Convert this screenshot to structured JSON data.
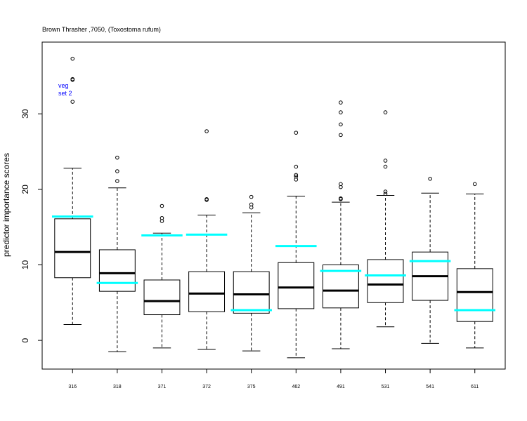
{
  "chart_data": {
    "type": "boxplot",
    "title": "Brown Thrasher ,7050, (Toxostoma rufum)",
    "ylabel": "predictor importance scores",
    "xlabel": "",
    "ylim": [
      -3.8,
      39.5
    ],
    "yticks": [
      0,
      10,
      20,
      30
    ],
    "annotation": [
      "veg",
      "set 2"
    ],
    "colors": {
      "box": "#000000",
      "median": "#000000",
      "reference": "#00ffff",
      "annotation": "#0000ff"
    },
    "categories": [
      "316",
      "318",
      "371",
      "372",
      "375",
      "462",
      "491",
      "531",
      "541",
      "611"
    ],
    "boxes": [
      {
        "category": "316",
        "whisker_low": 2.1,
        "q1": 8.3,
        "median": 11.7,
        "q3": 16.1,
        "whisker_high": 22.8,
        "outliers": [
          31.6,
          34.5,
          34.6,
          37.3
        ],
        "reference": 16.4
      },
      {
        "category": "318",
        "whisker_low": -1.5,
        "q1": 6.5,
        "median": 8.9,
        "q3": 12.0,
        "whisker_high": 20.2,
        "outliers": [
          21.1,
          22.4,
          24.2
        ],
        "reference": 7.6
      },
      {
        "category": "371",
        "whisker_low": -1.0,
        "q1": 3.4,
        "median": 5.2,
        "q3": 8.0,
        "whisker_high": 14.2,
        "outliers": [
          15.8,
          16.2,
          17.8
        ],
        "reference": 13.9
      },
      {
        "category": "372",
        "whisker_low": -1.2,
        "q1": 3.8,
        "median": 6.2,
        "q3": 9.1,
        "whisker_high": 16.6,
        "outliers": [
          18.6,
          18.7,
          27.7
        ],
        "reference": 14.0
      },
      {
        "category": "375",
        "whisker_low": -1.4,
        "q1": 3.6,
        "median": 6.1,
        "q3": 9.1,
        "whisker_high": 16.9,
        "outliers": [
          17.6,
          18.0,
          19.0
        ],
        "reference": 4.0
      },
      {
        "category": "462",
        "whisker_low": -2.3,
        "q1": 4.2,
        "median": 7.0,
        "q3": 10.3,
        "whisker_high": 19.1,
        "outliers": [
          21.3,
          21.7,
          21.9,
          23.0,
          27.5
        ],
        "reference": 12.5
      },
      {
        "category": "491",
        "whisker_low": -1.1,
        "q1": 4.3,
        "median": 6.6,
        "q3": 10.0,
        "whisker_high": 18.3,
        "outliers": [
          18.7,
          18.8,
          20.3,
          20.7,
          27.2,
          28.6,
          30.2,
          31.5
        ],
        "reference": 9.2
      },
      {
        "category": "531",
        "whisker_low": 1.8,
        "q1": 5.0,
        "median": 7.4,
        "q3": 10.7,
        "whisker_high": 19.2,
        "outliers": [
          19.4,
          19.7,
          23.0,
          23.8,
          30.2
        ],
        "reference": 8.6
      },
      {
        "category": "541",
        "whisker_low": -0.4,
        "q1": 5.3,
        "median": 8.5,
        "q3": 11.7,
        "whisker_high": 19.5,
        "outliers": [
          21.4
        ],
        "reference": 10.5
      },
      {
        "category": "611",
        "whisker_low": -1.0,
        "q1": 2.5,
        "median": 6.4,
        "q3": 9.5,
        "whisker_high": 19.4,
        "outliers": [
          20.7
        ],
        "reference": 4.0
      }
    ]
  }
}
